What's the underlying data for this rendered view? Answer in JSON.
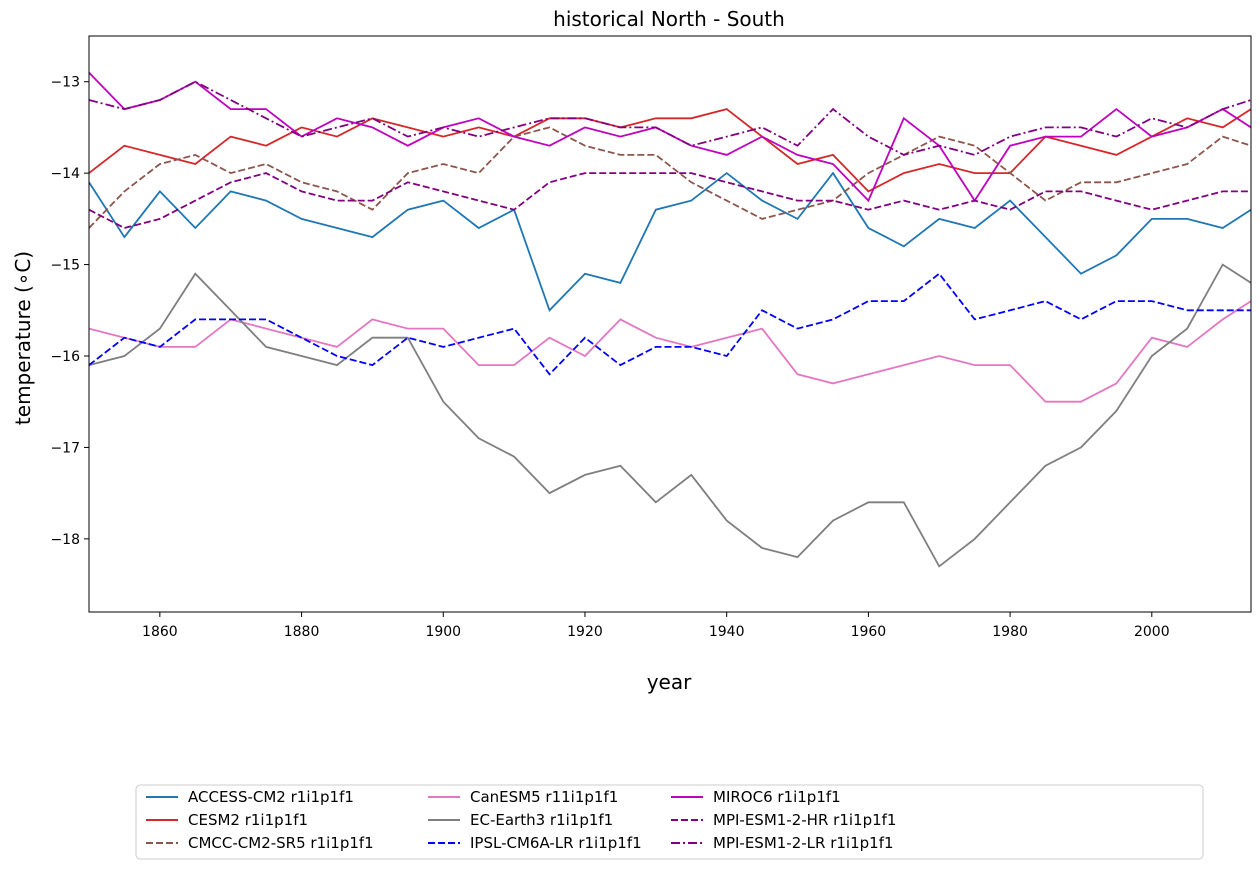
{
  "chart_data": {
    "type": "line",
    "title": "historical North - South",
    "xlabel": "year",
    "ylabel": "temperature (∘C)",
    "xlim": [
      1850,
      2014
    ],
    "ylim": [
      -18.8,
      -12.5
    ],
    "xticks": [
      1860,
      1880,
      1900,
      1920,
      1940,
      1960,
      1980,
      2000
    ],
    "yticks": [
      -18,
      -17,
      -16,
      -15,
      -14,
      -13
    ],
    "ytick_labels": [
      "−18",
      "−17",
      "−16",
      "−15",
      "−14",
      "−13"
    ],
    "grid": false,
    "legend_position": "below plot, 4 columns",
    "x": [
      1850,
      1855,
      1860,
      1865,
      1870,
      1875,
      1880,
      1885,
      1890,
      1895,
      1900,
      1905,
      1910,
      1915,
      1920,
      1925,
      1930,
      1935,
      1940,
      1945,
      1950,
      1955,
      1960,
      1965,
      1970,
      1975,
      1980,
      1985,
      1990,
      1995,
      2000,
      2005,
      2010,
      2014
    ],
    "series": [
      {
        "name": "ACCESS-CM2 r1i1p1f1",
        "color": "#1f77b4",
        "dash": "solid",
        "values": [
          -14.1,
          -14.7,
          -14.2,
          -14.6,
          -14.2,
          -14.3,
          -14.5,
          -14.6,
          -14.7,
          -14.4,
          -14.3,
          -14.6,
          -14.4,
          -15.5,
          -15.1,
          -15.2,
          -14.4,
          -14.3,
          -14.0,
          -14.3,
          -14.5,
          -14.0,
          -14.6,
          -14.8,
          -14.5,
          -14.6,
          -14.3,
          -14.7,
          -15.1,
          -14.9,
          -14.5,
          -14.5,
          -14.6,
          -14.4
        ]
      },
      {
        "name": "CESM2 r1i1p1f1",
        "color": "#d62728",
        "dash": "solid",
        "values": [
          -14.0,
          -13.7,
          -13.8,
          -13.9,
          -13.6,
          -13.7,
          -13.5,
          -13.6,
          -13.4,
          -13.5,
          -13.6,
          -13.5,
          -13.6,
          -13.4,
          -13.4,
          -13.5,
          -13.4,
          -13.4,
          -13.3,
          -13.6,
          -13.9,
          -13.8,
          -14.2,
          -14.0,
          -13.9,
          -14.0,
          -14.0,
          -13.6,
          -13.7,
          -13.8,
          -13.6,
          -13.4,
          -13.5,
          -13.3
        ]
      },
      {
        "name": "CMCC-CM2-SR5 r1i1p1f1",
        "color": "#8c564b",
        "dash": "dashed",
        "values": [
          -14.6,
          -14.2,
          -13.9,
          -13.8,
          -14.0,
          -13.9,
          -14.1,
          -14.2,
          -14.4,
          -14.0,
          -13.9,
          -14.0,
          -13.6,
          -13.5,
          -13.7,
          -13.8,
          -13.8,
          -14.1,
          -14.3,
          -14.5,
          -14.4,
          -14.3,
          -14.0,
          -13.8,
          -13.6,
          -13.7,
          -14.0,
          -14.3,
          -14.1,
          -14.1,
          -14.0,
          -13.9,
          -13.6,
          -13.7
        ]
      },
      {
        "name": "CanESM5 r11i1p1f1",
        "color": "#e377c2",
        "dash": "solid",
        "values": [
          -15.7,
          -15.8,
          -15.9,
          -15.9,
          -15.6,
          -15.7,
          -15.8,
          -15.9,
          -15.6,
          -15.7,
          -15.7,
          -16.1,
          -16.1,
          -15.8,
          -16.0,
          -15.6,
          -15.8,
          -15.9,
          -15.8,
          -15.7,
          -16.2,
          -16.3,
          -16.2,
          -16.1,
          -16.0,
          -16.1,
          -16.1,
          -16.5,
          -16.5,
          -16.3,
          -15.8,
          -15.9,
          -15.6,
          -15.4
        ]
      },
      {
        "name": "EC-Earth3 r1i1p1f1",
        "color": "#7f7f7f",
        "dash": "solid",
        "values": [
          -16.1,
          -16.0,
          -15.7,
          -15.1,
          -15.5,
          -15.9,
          -16.0,
          -16.1,
          -15.8,
          -15.8,
          -16.5,
          -16.9,
          -17.1,
          -17.5,
          -17.3,
          -17.2,
          -17.6,
          -17.3,
          -17.8,
          -18.1,
          -18.2,
          -17.8,
          -17.6,
          -17.6,
          -18.3,
          -18.0,
          -17.6,
          -17.2,
          -17.0,
          -16.6,
          -16.0,
          -15.7,
          -15.0,
          -15.2
        ]
      },
      {
        "name": "IPSL-CM6A-LR r1i1p1f1",
        "color": "#0000ff",
        "dash": "dashed",
        "values": [
          -16.1,
          -15.8,
          -15.9,
          -15.6,
          -15.6,
          -15.6,
          -15.8,
          -16.0,
          -16.1,
          -15.8,
          -15.9,
          -15.8,
          -15.7,
          -16.2,
          -15.8,
          -16.1,
          -15.9,
          -15.9,
          -16.0,
          -15.5,
          -15.7,
          -15.6,
          -15.4,
          -15.4,
          -15.1,
          -15.6,
          -15.5,
          -15.4,
          -15.6,
          -15.4,
          -15.4,
          -15.5,
          -15.5,
          -15.5
        ]
      },
      {
        "name": "MIROC6 r1i1p1f1",
        "color": "#bf00bf",
        "dash": "solid",
        "values": [
          -12.9,
          -13.3,
          -13.2,
          -13.0,
          -13.3,
          -13.3,
          -13.6,
          -13.4,
          -13.5,
          -13.7,
          -13.5,
          -13.4,
          -13.6,
          -13.7,
          -13.5,
          -13.6,
          -13.5,
          -13.7,
          -13.8,
          -13.6,
          -13.8,
          -13.9,
          -14.3,
          -13.4,
          -13.7,
          -14.3,
          -13.7,
          -13.6,
          -13.6,
          -13.3,
          -13.6,
          -13.5,
          -13.3,
          -13.5
        ]
      },
      {
        "name": "MPI-ESM1-2-HR r1i1p1f1",
        "color": "#800080",
        "dash": "dashed",
        "values": [
          -14.4,
          -14.6,
          -14.5,
          -14.3,
          -14.1,
          -14.0,
          -14.2,
          -14.3,
          -14.3,
          -14.1,
          -14.2,
          -14.3,
          -14.4,
          -14.1,
          -14.0,
          -14.0,
          -14.0,
          -14.0,
          -14.1,
          -14.2,
          -14.3,
          -14.3,
          -14.4,
          -14.3,
          -14.4,
          -14.3,
          -14.4,
          -14.2,
          -14.2,
          -14.3,
          -14.4,
          -14.3,
          -14.2,
          -14.2
        ]
      },
      {
        "name": "MPI-ESM1-2-LR r1i1p1f1",
        "color": "#800080",
        "dash": "dashdot",
        "values": [
          -13.2,
          -13.3,
          -13.2,
          -13.0,
          -13.2,
          -13.4,
          -13.6,
          -13.5,
          -13.4,
          -13.6,
          -13.5,
          -13.6,
          -13.5,
          -13.4,
          -13.4,
          -13.5,
          -13.5,
          -13.7,
          -13.6,
          -13.5,
          -13.7,
          -13.3,
          -13.6,
          -13.8,
          -13.7,
          -13.8,
          -13.6,
          -13.5,
          -13.5,
          -13.6,
          -13.4,
          -13.5,
          -13.3,
          -13.2
        ]
      }
    ]
  }
}
